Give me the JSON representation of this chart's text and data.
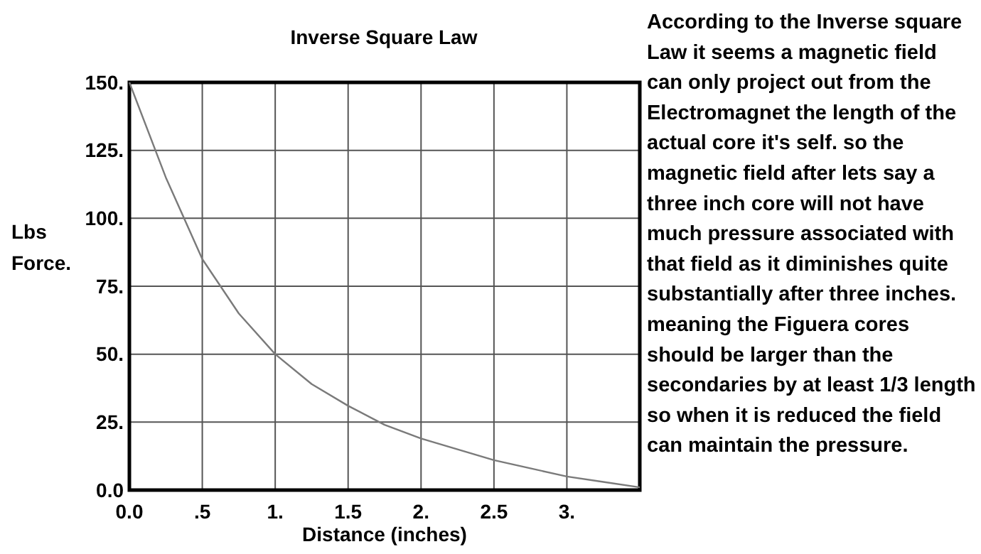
{
  "chart_data": {
    "type": "line",
    "title": "Inverse Square Law",
    "xlabel": "Distance (inches)",
    "ylabel": "Lbs Force.",
    "x": [
      0,
      0.25,
      0.5,
      0.75,
      1,
      1.25,
      1.5,
      1.75,
      2,
      2.25,
      2.5,
      2.75,
      3,
      3.25,
      3.5
    ],
    "series": [
      {
        "color": "#7a7a7a",
        "values": [
          150,
          115,
          85,
          65,
          50,
          39,
          31,
          24,
          19,
          15,
          11,
          8,
          5,
          3,
          1
        ]
      }
    ],
    "xlim": [
      0,
      3.5
    ],
    "xticks": [
      {
        "value": 0,
        "label": "0.0"
      },
      {
        "value": 0.5,
        "label": ".5"
      },
      {
        "value": 1,
        "label": "1."
      },
      {
        "value": 1.5,
        "label": "1.5"
      },
      {
        "value": 2,
        "label": "2."
      },
      {
        "value": 2.5,
        "label": "2.5"
      },
      {
        "value": 3,
        "label": "3."
      }
    ],
    "ylim": [
      0,
      150
    ],
    "yticks": [
      {
        "value": 0,
        "label": "0.0"
      },
      {
        "value": 25,
        "label": "25."
      },
      {
        "value": 50,
        "label": "50."
      },
      {
        "value": 75,
        "label": "75."
      },
      {
        "value": 100,
        "label": "100."
      },
      {
        "value": 125,
        "label": "125."
      },
      {
        "value": 150,
        "label": "150."
      }
    ],
    "grid": true,
    "marker": "none",
    "line_style": "solid",
    "annotations": [
      "According to the Inverse square Law it seems a magnetic field can only project out from the Electromagnet the length of the actual core it's self. so the magnetic field after lets say a three inch core will not have much pressure associated with that field as it diminishes quite substantially after three inches.\nmeaning the Figuera cores should be larger than the secondaries by at least 1/3 length so when it is reduced the field can maintain the pressure."
    ]
  }
}
